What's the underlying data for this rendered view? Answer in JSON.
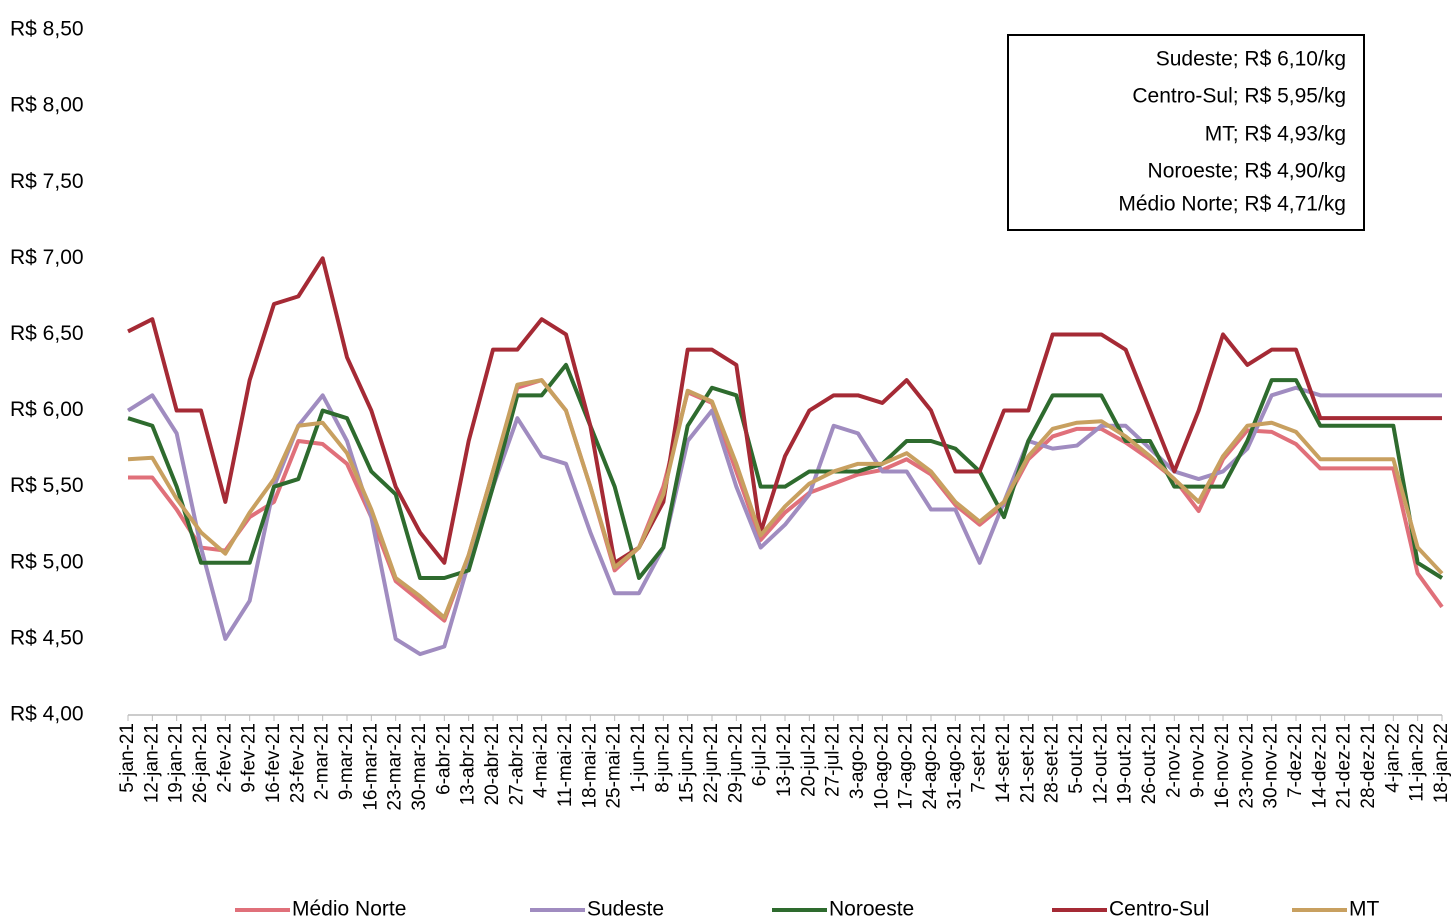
{
  "chart_data": {
    "type": "line",
    "categories": [
      "5-jan-21",
      "12-jan-21",
      "19-jan-21",
      "26-jan-21",
      "2-fev-21",
      "9-fev-21",
      "16-fev-21",
      "23-fev-21",
      "2-mar-21",
      "9-mar-21",
      "16-mar-21",
      "23-mar-21",
      "30-mar-21",
      "6-abr-21",
      "13-abr-21",
      "20-abr-21",
      "27-abr-21",
      "4-mai-21",
      "11-mai-21",
      "18-mai-21",
      "25-mai-21",
      "1-jun-21",
      "8-jun-21",
      "15-jun-21",
      "22-jun-21",
      "29-jun-21",
      "6-jul-21",
      "13-jul-21",
      "20-jul-21",
      "27-jul-21",
      "3-ago-21",
      "10-ago-21",
      "17-ago-21",
      "24-ago-21",
      "31-ago-21",
      "7-set-21",
      "14-set-21",
      "21-set-21",
      "28-set-21",
      "5-out-21",
      "12-out-21",
      "19-out-21",
      "26-out-21",
      "2-nov-21",
      "9-nov-21",
      "16-nov-21",
      "23-nov-21",
      "30-nov-21",
      "7-dez-21",
      "14-dez-21",
      "21-dez-21",
      "28-dez-21",
      "4-jan-22",
      "11-jan-22",
      "18-jan-22"
    ],
    "series": [
      {
        "name": "Médio Norte",
        "color": "#e0707a",
        "values": [
          5.56,
          5.56,
          5.35,
          5.1,
          5.08,
          5.3,
          5.4,
          5.8,
          5.78,
          5.65,
          5.3,
          4.88,
          4.75,
          4.62,
          5.05,
          5.6,
          6.15,
          6.2,
          6.0,
          5.5,
          4.95,
          5.1,
          5.5,
          6.12,
          6.05,
          5.6,
          5.15,
          5.33,
          5.46,
          5.52,
          5.58,
          5.61,
          5.68,
          5.58,
          5.38,
          5.25,
          5.38,
          5.68,
          5.83,
          5.88,
          5.88,
          5.79,
          5.68,
          5.55,
          5.34,
          5.68,
          5.87,
          5.86,
          5.78,
          5.62,
          5.62,
          5.62,
          5.62,
          4.93,
          4.71
        ]
      },
      {
        "name": "Sudeste",
        "color": "#a08cc0",
        "values": [
          6.0,
          6.1,
          5.85,
          5.1,
          4.5,
          4.75,
          5.5,
          5.9,
          6.1,
          5.8,
          5.3,
          4.5,
          4.4,
          4.45,
          5.0,
          5.5,
          5.95,
          5.7,
          5.65,
          5.2,
          4.8,
          4.8,
          5.1,
          5.8,
          6.0,
          5.5,
          5.1,
          5.25,
          5.45,
          5.9,
          5.85,
          5.6,
          5.6,
          5.35,
          5.35,
          5.0,
          5.4,
          5.8,
          5.75,
          5.77,
          5.9,
          5.9,
          5.75,
          5.6,
          5.55,
          5.6,
          5.75,
          6.1,
          6.15,
          6.1,
          6.1,
          6.1,
          6.1,
          6.1,
          6.1
        ]
      },
      {
        "name": "Noroeste",
        "color": "#2e6b2e",
        "values": [
          5.95,
          5.9,
          5.5,
          5.0,
          5.0,
          5.0,
          5.5,
          5.55,
          6.0,
          5.95,
          5.6,
          5.45,
          4.9,
          4.9,
          4.95,
          5.5,
          6.1,
          6.1,
          6.3,
          5.9,
          5.5,
          4.9,
          5.1,
          5.9,
          6.15,
          6.1,
          5.5,
          5.5,
          5.6,
          5.6,
          5.6,
          5.65,
          5.8,
          5.8,
          5.75,
          5.6,
          5.3,
          5.8,
          6.1,
          6.1,
          6.1,
          5.8,
          5.8,
          5.5,
          5.5,
          5.5,
          5.8,
          6.2,
          6.2,
          5.9,
          5.9,
          5.9,
          5.9,
          5.0,
          4.9
        ]
      },
      {
        "name": "Centro-Sul",
        "color": "#a52a35",
        "values": [
          6.52,
          6.6,
          6.0,
          6.0,
          5.4,
          6.2,
          6.7,
          6.75,
          7.0,
          6.35,
          6.0,
          5.5,
          5.2,
          5.0,
          5.8,
          6.4,
          6.4,
          6.6,
          6.5,
          5.9,
          5.0,
          5.1,
          5.4,
          6.4,
          6.4,
          6.3,
          5.2,
          5.7,
          6.0,
          6.1,
          6.1,
          6.05,
          6.2,
          6.0,
          5.6,
          5.6,
          6.0,
          6.0,
          6.5,
          6.5,
          6.5,
          6.4,
          6.0,
          5.6,
          6.0,
          6.5,
          6.3,
          6.4,
          6.4,
          5.95,
          5.95,
          5.95,
          5.95,
          5.95,
          5.95
        ]
      },
      {
        "name": "MT",
        "color": "#c8a060",
        "values": [
          5.68,
          5.69,
          5.42,
          5.2,
          5.06,
          5.33,
          5.55,
          5.9,
          5.92,
          5.72,
          5.35,
          4.9,
          4.78,
          4.64,
          5.05,
          5.6,
          6.17,
          6.2,
          6.0,
          5.5,
          4.97,
          5.1,
          5.45,
          6.13,
          6.06,
          5.65,
          5.18,
          5.37,
          5.52,
          5.6,
          5.65,
          5.65,
          5.72,
          5.6,
          5.4,
          5.27,
          5.4,
          5.7,
          5.88,
          5.92,
          5.93,
          5.83,
          5.7,
          5.55,
          5.4,
          5.7,
          5.9,
          5.92,
          5.86,
          5.68,
          5.68,
          5.68,
          5.68,
          5.1,
          4.93
        ]
      }
    ],
    "ylim": [
      4.0,
      8.5
    ],
    "yticks": [
      {
        "value": 4.0,
        "label": "R$ 4,00"
      },
      {
        "value": 4.5,
        "label": "R$ 4,50"
      },
      {
        "value": 5.0,
        "label": "R$ 5,00"
      },
      {
        "value": 5.5,
        "label": "R$ 5,50"
      },
      {
        "value": 6.0,
        "label": "R$ 6,00"
      },
      {
        "value": 6.5,
        "label": "R$ 6,50"
      },
      {
        "value": 7.0,
        "label": "R$ 7,00"
      },
      {
        "value": 7.5,
        "label": "R$ 7,50"
      },
      {
        "value": 8.0,
        "label": "R$ 8,00"
      },
      {
        "value": 8.5,
        "label": "R$ 8,50"
      }
    ],
    "annotations": [
      "Sudeste; R$ 6,10/kg",
      "Centro-Sul; R$ 5,95/kg",
      "MT; R$ 4,93/kg",
      "Noroeste; R$ 4,90/kg",
      "Médio Norte; R$ 4,71/kg"
    ],
    "legend": "bottom"
  }
}
